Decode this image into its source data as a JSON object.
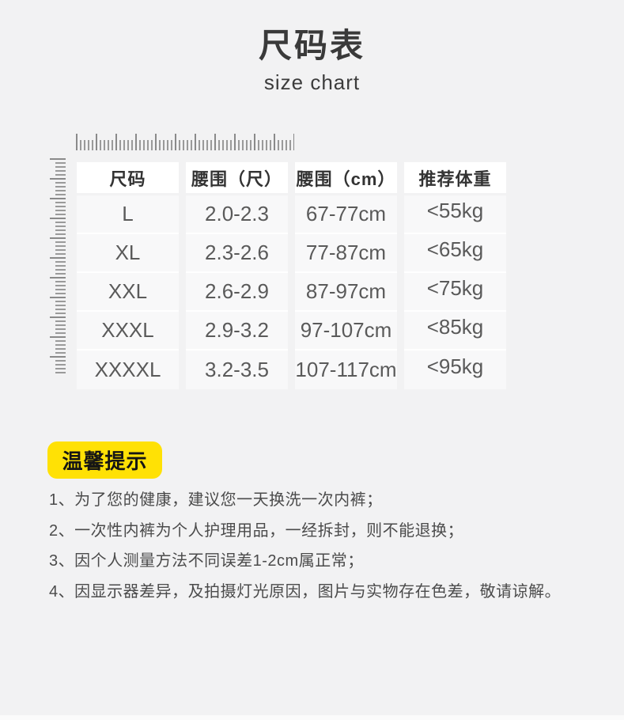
{
  "page": {
    "title": "尺码表",
    "subtitle": "size chart"
  },
  "chart_data": {
    "type": "table",
    "title": "尺码表 size chart",
    "headers": [
      "尺码",
      "腰围（尺）",
      "腰围（cm）",
      "推荐体重"
    ],
    "rows": [
      [
        "L",
        "2.0-2.3",
        "67-77cm",
        "<55kg"
      ],
      [
        "XL",
        "2.3-2.6",
        "77-87cm",
        "<65kg"
      ],
      [
        "XXL",
        "2.6-2.9",
        "87-97cm",
        "<75kg"
      ],
      [
        "XXXL",
        "2.9-3.2",
        "97-107cm",
        "<85kg"
      ],
      [
        "XXXXL",
        "3.2-3.5",
        "107-117cm",
        "<95kg"
      ]
    ]
  },
  "size_table": {
    "headers": [
      "尺码",
      "腰围（尺）",
      "腰围（cm）",
      "推荐体重"
    ],
    "rows": [
      [
        "L",
        "2.0-2.3",
        "67-77cm",
        "<55kg"
      ],
      [
        "XL",
        "2.3-2.6",
        "77-87cm",
        "<65kg"
      ],
      [
        "XXL",
        "2.6-2.9",
        "87-97cm",
        "<75kg"
      ],
      [
        "XXXL",
        "2.9-3.2",
        "97-107cm",
        "<85kg"
      ],
      [
        "XXXXL",
        "3.2-3.5",
        "107-117cm",
        "<95kg"
      ]
    ]
  },
  "tips": {
    "badge_label": "温馨提示",
    "items": [
      "1、为了您的健康，建议您一天换洗一次内裤；",
      "2、一次性内裤为个人护理用品，一经拆封，则不能退换；",
      "3、因个人测量方法不同误差1-2cm属正常；",
      "4、因显示器差异，及拍摄灯光原因，图片与实物存在色差，敬请谅解。"
    ]
  },
  "icons": {
    "horizontal_ruler": "ruler-ticks-horizontal",
    "vertical_ruler": "ruler-ticks-vertical"
  },
  "colors": {
    "page_bg": "#f2f2f3",
    "header_cell_bg": "#ffffff",
    "body_cell_bg": "#f8f8f9",
    "badge_bg": "#ffe105",
    "title_text": "#3a3a3a",
    "body_text": "#5a5a5a",
    "tips_text": "#4b4b4b",
    "ruler_tick": "#8a8a8a"
  }
}
